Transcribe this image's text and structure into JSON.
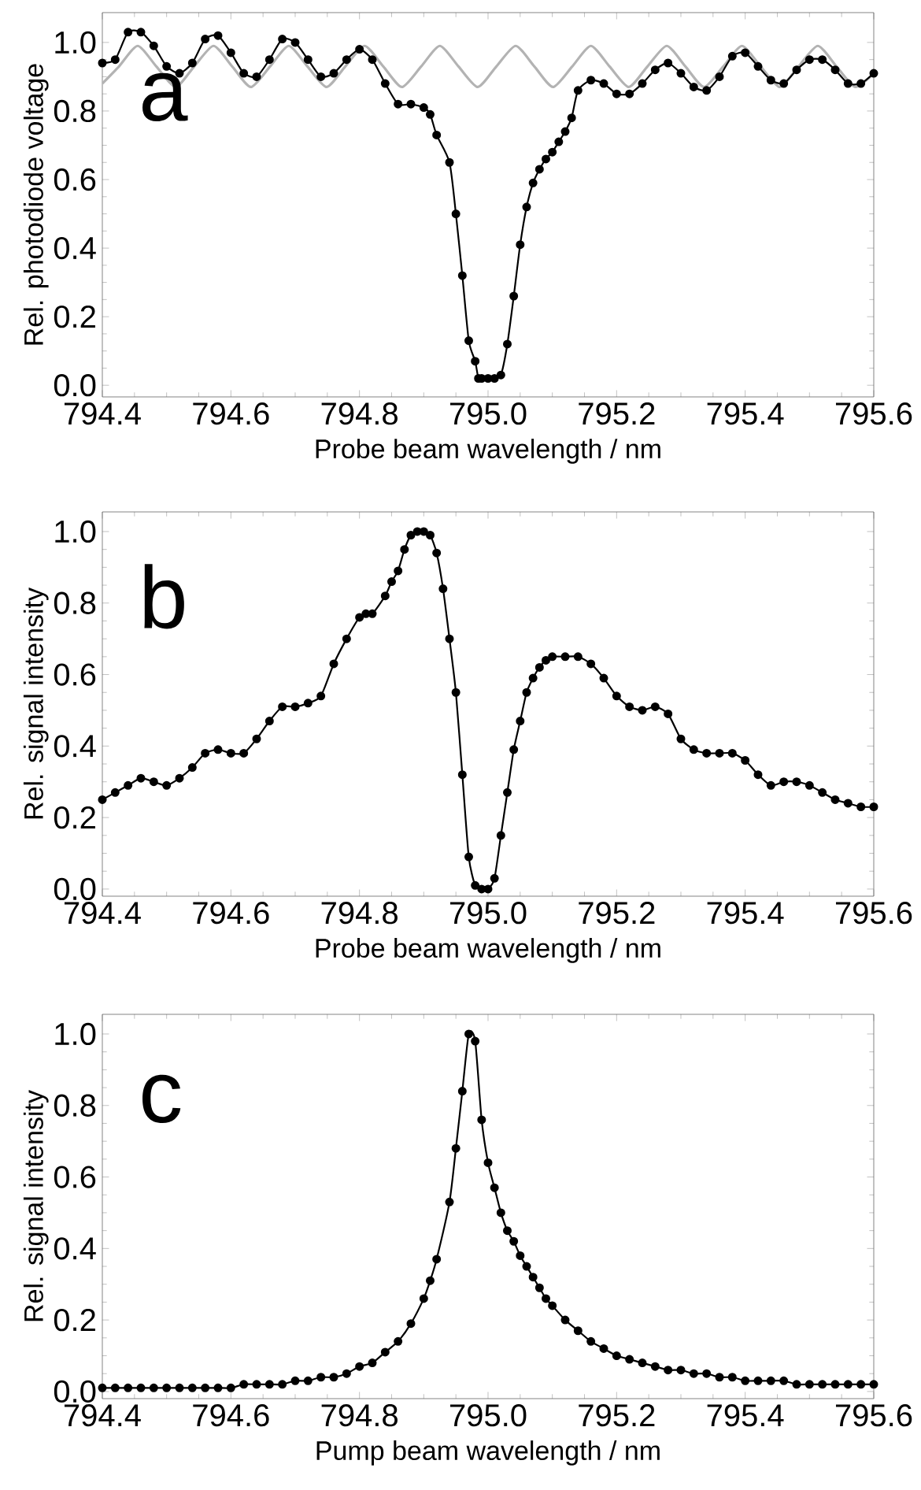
{
  "chart_data": [
    {
      "type": "line",
      "xlabel": "Probe beam wavelength / nm",
      "ylabel": "Rel. photodiode voltage",
      "annotations": [
        "a"
      ],
      "xlim": [
        794.4,
        795.6
      ],
      "ylim": [
        -0.034,
        1.087
      ],
      "xticks": [
        {
          "value": 794.4,
          "label": "794.4"
        },
        {
          "value": 794.6,
          "label": "794.6"
        },
        {
          "value": 794.8,
          "label": "794.8"
        },
        {
          "value": 795.0,
          "label": "795.0"
        },
        {
          "value": 795.2,
          "label": "795.2"
        },
        {
          "value": 795.4,
          "label": "795.4"
        },
        {
          "value": 795.6,
          "label": "795.6"
        }
      ],
      "yticks": [
        {
          "value": 0,
          "label": "0.0"
        },
        {
          "value": 0.2,
          "label": "0.2"
        },
        {
          "value": 0.4,
          "label": "0.4"
        },
        {
          "value": 0.6,
          "label": "0.6"
        },
        {
          "value": 0.8,
          "label": "0.8"
        },
        {
          "value": 1.0,
          "label": "1.0"
        }
      ],
      "series": [
        {
          "color": "#b3b3b3",
          "marker": "none",
          "x": [
            794.4,
            794.426,
            794.455,
            794.484,
            794.514,
            794.543,
            794.573,
            794.602,
            794.631,
            794.661,
            794.69,
            794.719,
            794.749,
            794.778,
            794.808,
            794.837,
            794.866,
            794.896,
            794.925,
            794.954,
            794.984,
            795.013,
            795.043,
            795.072,
            795.101,
            795.131,
            795.16,
            795.189,
            795.219,
            795.248,
            795.278,
            795.307,
            795.336,
            795.366,
            795.395,
            795.424,
            795.454,
            795.483,
            795.513,
            795.542,
            795.571,
            795.6
          ],
          "values": [
            0.88,
            0.93,
            0.99,
            0.93,
            0.87,
            0.93,
            0.99,
            0.93,
            0.87,
            0.93,
            0.99,
            0.93,
            0.87,
            0.93,
            0.99,
            0.93,
            0.87,
            0.93,
            0.99,
            0.93,
            0.87,
            0.93,
            0.99,
            0.93,
            0.87,
            0.93,
            0.99,
            0.93,
            0.87,
            0.93,
            0.99,
            0.93,
            0.87,
            0.93,
            0.99,
            0.93,
            0.87,
            0.93,
            0.99,
            0.93,
            0.87,
            0.91
          ]
        },
        {
          "color": "#000000",
          "marker": "circle",
          "x": [
            794.4,
            794.42,
            794.44,
            794.46,
            794.48,
            794.5,
            794.52,
            794.54,
            794.56,
            794.58,
            794.6,
            794.62,
            794.64,
            794.66,
            794.68,
            794.7,
            794.72,
            794.74,
            794.76,
            794.78,
            794.8,
            794.82,
            794.84,
            794.86,
            794.88,
            794.9,
            794.91,
            794.92,
            794.94,
            794.95,
            794.96,
            794.97,
            794.98,
            794.985,
            794.99,
            795.0,
            795.01,
            795.02,
            795.03,
            795.04,
            795.05,
            795.06,
            795.07,
            795.08,
            795.09,
            795.1,
            795.11,
            795.12,
            795.13,
            795.14,
            795.16,
            795.18,
            795.2,
            795.22,
            795.24,
            795.26,
            795.28,
            795.3,
            795.32,
            795.34,
            795.36,
            795.38,
            795.4,
            795.42,
            795.44,
            795.46,
            795.48,
            795.5,
            795.52,
            795.54,
            795.56,
            795.58,
            795.6
          ],
          "values": [
            0.94,
            0.95,
            1.03,
            1.03,
            0.99,
            0.93,
            0.91,
            0.94,
            1.01,
            1.02,
            0.97,
            0.91,
            0.9,
            0.95,
            1.01,
            1.0,
            0.95,
            0.9,
            0.91,
            0.95,
            0.98,
            0.95,
            0.88,
            0.82,
            0.82,
            0.81,
            0.79,
            0.73,
            0.65,
            0.5,
            0.32,
            0.13,
            0.07,
            0.02,
            0.02,
            0.02,
            0.02,
            0.03,
            0.12,
            0.26,
            0.41,
            0.52,
            0.59,
            0.63,
            0.66,
            0.68,
            0.71,
            0.74,
            0.78,
            0.86,
            0.89,
            0.88,
            0.85,
            0.85,
            0.88,
            0.92,
            0.94,
            0.91,
            0.87,
            0.86,
            0.9,
            0.96,
            0.97,
            0.93,
            0.89,
            0.88,
            0.92,
            0.95,
            0.95,
            0.92,
            0.88,
            0.88,
            0.91
          ]
        }
      ]
    },
    {
      "type": "line",
      "xlabel": "Probe beam wavelength / nm",
      "ylabel": "Rel. signal intensity",
      "annotations": [
        "b"
      ],
      "xlim": [
        794.4,
        795.6
      ],
      "ylim": [
        -0.02,
        1.055
      ],
      "xticks": [
        {
          "value": 794.4,
          "label": "794.4"
        },
        {
          "value": 794.6,
          "label": "794.6"
        },
        {
          "value": 794.8,
          "label": "794.8"
        },
        {
          "value": 795.0,
          "label": "795.0"
        },
        {
          "value": 795.2,
          "label": "795.2"
        },
        {
          "value": 795.4,
          "label": "795.4"
        },
        {
          "value": 795.6,
          "label": "795.6"
        }
      ],
      "yticks": [
        {
          "value": 0,
          "label": "0.0"
        },
        {
          "value": 0.2,
          "label": "0.2"
        },
        {
          "value": 0.4,
          "label": "0.4"
        },
        {
          "value": 0.6,
          "label": "0.6"
        },
        {
          "value": 0.8,
          "label": "0.8"
        },
        {
          "value": 1.0,
          "label": "1.0"
        }
      ],
      "series": [
        {
          "color": "#000000",
          "marker": "circle",
          "x": [
            794.4,
            794.42,
            794.44,
            794.46,
            794.48,
            794.5,
            794.52,
            794.54,
            794.56,
            794.58,
            794.6,
            794.62,
            794.64,
            794.66,
            794.68,
            794.7,
            794.72,
            794.74,
            794.76,
            794.78,
            794.8,
            794.81,
            794.82,
            794.84,
            794.85,
            794.86,
            794.87,
            794.88,
            794.89,
            794.9,
            794.91,
            794.92,
            794.93,
            794.94,
            794.95,
            794.96,
            794.97,
            794.98,
            794.99,
            795.0,
            795.01,
            795.02,
            795.03,
            795.04,
            795.05,
            795.06,
            795.07,
            795.08,
            795.09,
            795.1,
            795.12,
            795.14,
            795.16,
            795.18,
            795.2,
            795.22,
            795.24,
            795.26,
            795.28,
            795.3,
            795.32,
            795.34,
            795.36,
            795.38,
            795.4,
            795.42,
            795.44,
            795.46,
            795.48,
            795.5,
            795.52,
            795.54,
            795.56,
            795.58,
            795.6
          ],
          "values": [
            0.25,
            0.27,
            0.29,
            0.31,
            0.3,
            0.29,
            0.31,
            0.34,
            0.38,
            0.39,
            0.38,
            0.38,
            0.42,
            0.47,
            0.51,
            0.51,
            0.52,
            0.54,
            0.63,
            0.7,
            0.76,
            0.77,
            0.77,
            0.82,
            0.86,
            0.89,
            0.95,
            0.99,
            1.0,
            1.0,
            0.99,
            0.94,
            0.84,
            0.7,
            0.55,
            0.32,
            0.09,
            0.01,
            0.0,
            0.0,
            0.03,
            0.15,
            0.27,
            0.39,
            0.47,
            0.55,
            0.59,
            0.62,
            0.64,
            0.65,
            0.65,
            0.65,
            0.63,
            0.59,
            0.54,
            0.51,
            0.5,
            0.51,
            0.49,
            0.42,
            0.39,
            0.38,
            0.38,
            0.38,
            0.36,
            0.32,
            0.29,
            0.3,
            0.3,
            0.29,
            0.27,
            0.25,
            0.24,
            0.23,
            0.23
          ]
        }
      ]
    },
    {
      "type": "line",
      "xlabel": "Pump beam wavelength / nm",
      "ylabel": "Rel. signal intensity",
      "annotations": [
        "c"
      ],
      "xlim": [
        794.4,
        795.6
      ],
      "ylim": [
        -0.02,
        1.055
      ],
      "xticks": [
        {
          "value": 794.4,
          "label": "794.4"
        },
        {
          "value": 794.6,
          "label": "794.6"
        },
        {
          "value": 794.8,
          "label": "794.8"
        },
        {
          "value": 795.0,
          "label": "795.0"
        },
        {
          "value": 795.2,
          "label": "795.2"
        },
        {
          "value": 795.4,
          "label": "795.4"
        },
        {
          "value": 795.6,
          "label": "795.6"
        }
      ],
      "yticks": [
        {
          "value": 0,
          "label": "0.0"
        },
        {
          "value": 0.2,
          "label": "0.2"
        },
        {
          "value": 0.4,
          "label": "0.4"
        },
        {
          "value": 0.6,
          "label": "0.6"
        },
        {
          "value": 0.8,
          "label": "0.8"
        },
        {
          "value": 1.0,
          "label": "1.0"
        }
      ],
      "series": [
        {
          "color": "#000000",
          "marker": "circle",
          "x": [
            794.4,
            794.42,
            794.44,
            794.46,
            794.48,
            794.5,
            794.52,
            794.54,
            794.56,
            794.58,
            794.6,
            794.62,
            794.64,
            794.66,
            794.68,
            794.7,
            794.72,
            794.74,
            794.76,
            794.78,
            794.8,
            794.82,
            794.84,
            794.86,
            794.88,
            794.9,
            794.91,
            794.92,
            794.94,
            794.95,
            794.96,
            794.97,
            794.98,
            794.99,
            795.0,
            795.01,
            795.02,
            795.03,
            795.04,
            795.05,
            795.06,
            795.07,
            795.08,
            795.09,
            795.1,
            795.12,
            795.14,
            795.16,
            795.18,
            795.2,
            795.22,
            795.24,
            795.26,
            795.28,
            795.3,
            795.32,
            795.34,
            795.36,
            795.38,
            795.4,
            795.42,
            795.44,
            795.46,
            795.48,
            795.5,
            795.52,
            795.54,
            795.56,
            795.58,
            795.6
          ],
          "values": [
            0.01,
            0.01,
            0.01,
            0.01,
            0.01,
            0.01,
            0.01,
            0.01,
            0.01,
            0.01,
            0.01,
            0.02,
            0.02,
            0.02,
            0.02,
            0.03,
            0.03,
            0.04,
            0.04,
            0.05,
            0.07,
            0.08,
            0.11,
            0.14,
            0.19,
            0.26,
            0.31,
            0.37,
            0.53,
            0.68,
            0.84,
            1.0,
            0.98,
            0.76,
            0.64,
            0.57,
            0.5,
            0.45,
            0.42,
            0.38,
            0.35,
            0.32,
            0.29,
            0.26,
            0.24,
            0.2,
            0.17,
            0.14,
            0.12,
            0.1,
            0.09,
            0.08,
            0.07,
            0.06,
            0.06,
            0.05,
            0.05,
            0.04,
            0.04,
            0.03,
            0.03,
            0.03,
            0.03,
            0.02,
            0.02,
            0.02,
            0.02,
            0.02,
            0.02,
            0.02
          ]
        }
      ]
    }
  ]
}
